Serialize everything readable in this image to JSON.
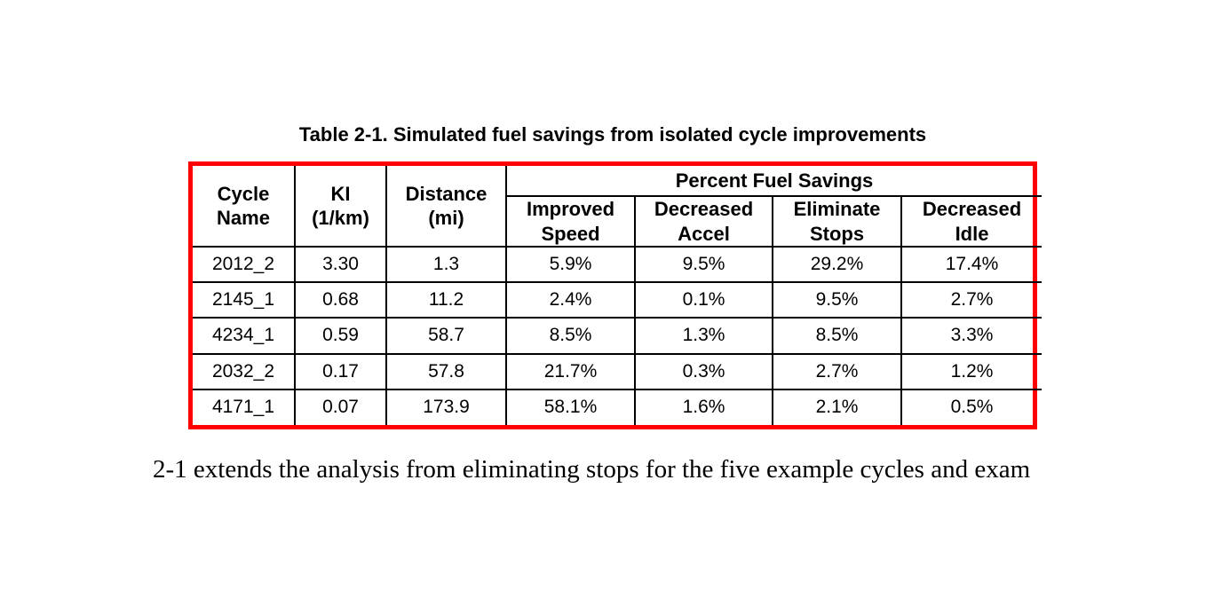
{
  "page": {
    "caption": "Table 2-1. Simulated fuel savings from isolated cycle improvements",
    "body_text": "2-1 extends the analysis from eliminating stops for the five example cycles and exam"
  },
  "table": {
    "frame_color": "#ff0000",
    "grid_color": "#000000",
    "group_header": "Percent Fuel Savings",
    "columns": [
      "Cycle\nName",
      "KI\n(1/km)",
      "Distance\n(mi)",
      "Improved\nSpeed",
      "Decreased\nAccel",
      "Eliminate\nStops",
      "Decreased\nIdle"
    ],
    "rows": [
      [
        "2012_2",
        "3.30",
        "1.3",
        "5.9%",
        "9.5%",
        "29.2%",
        "17.4%"
      ],
      [
        "2145_1",
        "0.68",
        "11.2",
        "2.4%",
        "0.1%",
        "9.5%",
        "2.7%"
      ],
      [
        "4234_1",
        "0.59",
        "58.7",
        "8.5%",
        "1.3%",
        "8.5%",
        "3.3%"
      ],
      [
        "2032_2",
        "0.17",
        "57.8",
        "21.7%",
        "0.3%",
        "2.7%",
        "1.2%"
      ],
      [
        "4171_1",
        "0.07",
        "173.9",
        "58.1%",
        "1.6%",
        "2.1%",
        "0.5%"
      ]
    ]
  }
}
